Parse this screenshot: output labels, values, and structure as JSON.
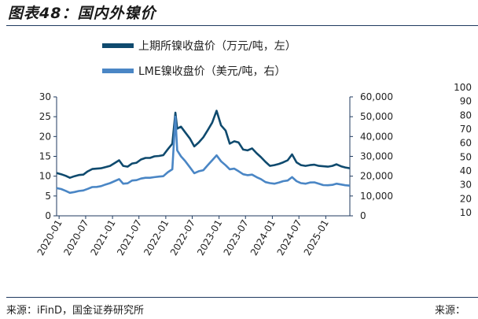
{
  "header": {
    "title": "图表48：国内外镍价"
  },
  "footer": {
    "source": "来源：iFinD，国金证券研究所",
    "source_right": "来源："
  },
  "colors": {
    "domestic": "#0f4a6e",
    "lme": "#4a86c5",
    "axis": "#1f3a5f"
  },
  "chart_data": {
    "type": "line",
    "title": "",
    "legend": {
      "placement": "top-left",
      "entries": [
        "上期所镍收盘价（万元/吨，左）",
        "LME镍收盘价（美元/吨，右）"
      ]
    },
    "x_ticks": [
      "2020-01",
      "2020-07",
      "2021-01",
      "2021-07",
      "2022-01",
      "2022-07",
      "2023-01",
      "2023-07",
      "2024-01",
      "2024-07",
      "2025-01"
    ],
    "x_range": [
      "2019-12-15",
      "2025-06-15"
    ],
    "y_left": {
      "range": [
        0,
        30
      ],
      "ticks": [
        "0",
        "5",
        "10",
        "15",
        "20",
        "25",
        "30"
      ]
    },
    "y_right": {
      "range": [
        0,
        60000
      ],
      "ticks": [
        "0",
        "10,000",
        "20,000",
        "30,000",
        "40,000",
        "50,000",
        "60,000"
      ]
    },
    "y_extra": {
      "ticks": [
        "10",
        "20",
        "30",
        "40",
        "50",
        "60",
        "70",
        "80",
        "90",
        "100"
      ]
    },
    "series": [
      {
        "name": "上期所镍收盘价（万元/吨，左）",
        "axis": "left",
        "x": [
          "2019-12-15",
          "2020-01-15",
          "2020-02-15",
          "2020-03-15",
          "2020-04-15",
          "2020-05-15",
          "2020-06-15",
          "2020-07-15",
          "2020-08-15",
          "2020-09-15",
          "2020-10-15",
          "2020-11-15",
          "2020-12-15",
          "2021-01-15",
          "2021-02-15",
          "2021-03-15",
          "2021-04-15",
          "2021-05-15",
          "2021-06-15",
          "2021-07-15",
          "2021-08-15",
          "2021-09-15",
          "2021-10-15",
          "2021-11-15",
          "2021-12-15",
          "2022-01-15",
          "2022-02-15",
          "2022-03-08",
          "2022-03-20",
          "2022-04-15",
          "2022-05-15",
          "2022-06-15",
          "2022-07-15",
          "2022-08-15",
          "2022-09-15",
          "2022-10-15",
          "2022-11-15",
          "2022-12-15",
          "2023-01-15",
          "2023-02-15",
          "2023-03-15",
          "2023-04-15",
          "2023-05-15",
          "2023-06-15",
          "2023-07-15",
          "2023-08-15",
          "2023-09-15",
          "2023-10-15",
          "2023-11-15",
          "2023-12-15",
          "2024-01-15",
          "2024-02-15",
          "2024-03-15",
          "2024-04-15",
          "2024-05-15",
          "2024-06-15",
          "2024-07-15",
          "2024-08-15",
          "2024-09-15",
          "2024-10-15",
          "2024-11-15",
          "2024-12-15",
          "2025-01-15",
          "2025-02-15",
          "2025-03-15",
          "2025-04-15",
          "2025-05-15",
          "2025-06-15"
        ],
        "values": [
          10.8,
          10.5,
          10.1,
          9.6,
          10.0,
          10.3,
          10.4,
          11.2,
          11.8,
          11.9,
          12.0,
          12.3,
          12.6,
          13.3,
          14.0,
          12.6,
          12.4,
          13.2,
          13.4,
          14.2,
          14.6,
          14.6,
          15.0,
          15.1,
          15.3,
          16.8,
          18.2,
          26.0,
          22.0,
          22.5,
          21.0,
          19.5,
          17.5,
          18.5,
          19.8,
          21.6,
          23.5,
          26.5,
          22.8,
          21.5,
          18.2,
          18.8,
          18.5,
          16.7,
          16.5,
          17.0,
          15.8,
          14.8,
          13.6,
          12.6,
          12.8,
          13.1,
          13.5,
          14.0,
          15.5,
          13.5,
          12.8,
          12.6,
          12.8,
          12.9,
          12.6,
          12.5,
          12.4,
          12.6,
          13.0,
          12.5,
          12.2,
          12.0
        ]
      },
      {
        "name": "LME镍收盘价（美元/吨，右）",
        "axis": "right",
        "x": [
          "2019-12-15",
          "2020-01-15",
          "2020-02-15",
          "2020-03-15",
          "2020-04-15",
          "2020-05-15",
          "2020-06-15",
          "2020-07-15",
          "2020-08-15",
          "2020-09-15",
          "2020-10-15",
          "2020-11-15",
          "2020-12-15",
          "2021-01-15",
          "2021-02-15",
          "2021-03-15",
          "2021-04-15",
          "2021-05-15",
          "2021-06-15",
          "2021-07-15",
          "2021-08-15",
          "2021-09-15",
          "2021-10-15",
          "2021-11-15",
          "2021-12-15",
          "2022-01-15",
          "2022-02-15",
          "2022-03-08",
          "2022-03-20",
          "2022-04-15",
          "2022-05-15",
          "2022-06-15",
          "2022-07-15",
          "2022-08-15",
          "2022-09-15",
          "2022-10-15",
          "2022-11-15",
          "2022-12-15",
          "2023-01-15",
          "2023-02-15",
          "2023-03-15",
          "2023-04-15",
          "2023-05-15",
          "2023-06-15",
          "2023-07-15",
          "2023-08-15",
          "2023-09-15",
          "2023-10-15",
          "2023-11-15",
          "2023-12-15",
          "2024-01-15",
          "2024-02-15",
          "2024-03-15",
          "2024-04-15",
          "2024-05-15",
          "2024-06-15",
          "2024-07-15",
          "2024-08-15",
          "2024-09-15",
          "2024-10-15",
          "2024-11-15",
          "2024-12-15",
          "2025-01-15",
          "2025-02-15",
          "2025-03-15",
          "2025-04-15",
          "2025-05-15",
          "2025-06-15"
        ],
        "values": [
          14000,
          13500,
          12600,
          11600,
          12000,
          12500,
          12800,
          13600,
          14500,
          14600,
          15000,
          15800,
          16500,
          17500,
          18500,
          16200,
          16400,
          17800,
          18000,
          18800,
          19200,
          19200,
          19500,
          19800,
          20000,
          22000,
          23500,
          50000,
          33000,
          30000,
          27500,
          24500,
          21500,
          22500,
          23000,
          25500,
          28000,
          30500,
          27500,
          25500,
          23500,
          23800,
          22500,
          21000,
          20500,
          20800,
          19500,
          18500,
          17000,
          16500,
          16200,
          16800,
          17500,
          17800,
          19500,
          17500,
          16500,
          16200,
          16800,
          16900,
          16200,
          15500,
          15400,
          15600,
          16200,
          15800,
          15400,
          15200
        ]
      }
    ]
  }
}
